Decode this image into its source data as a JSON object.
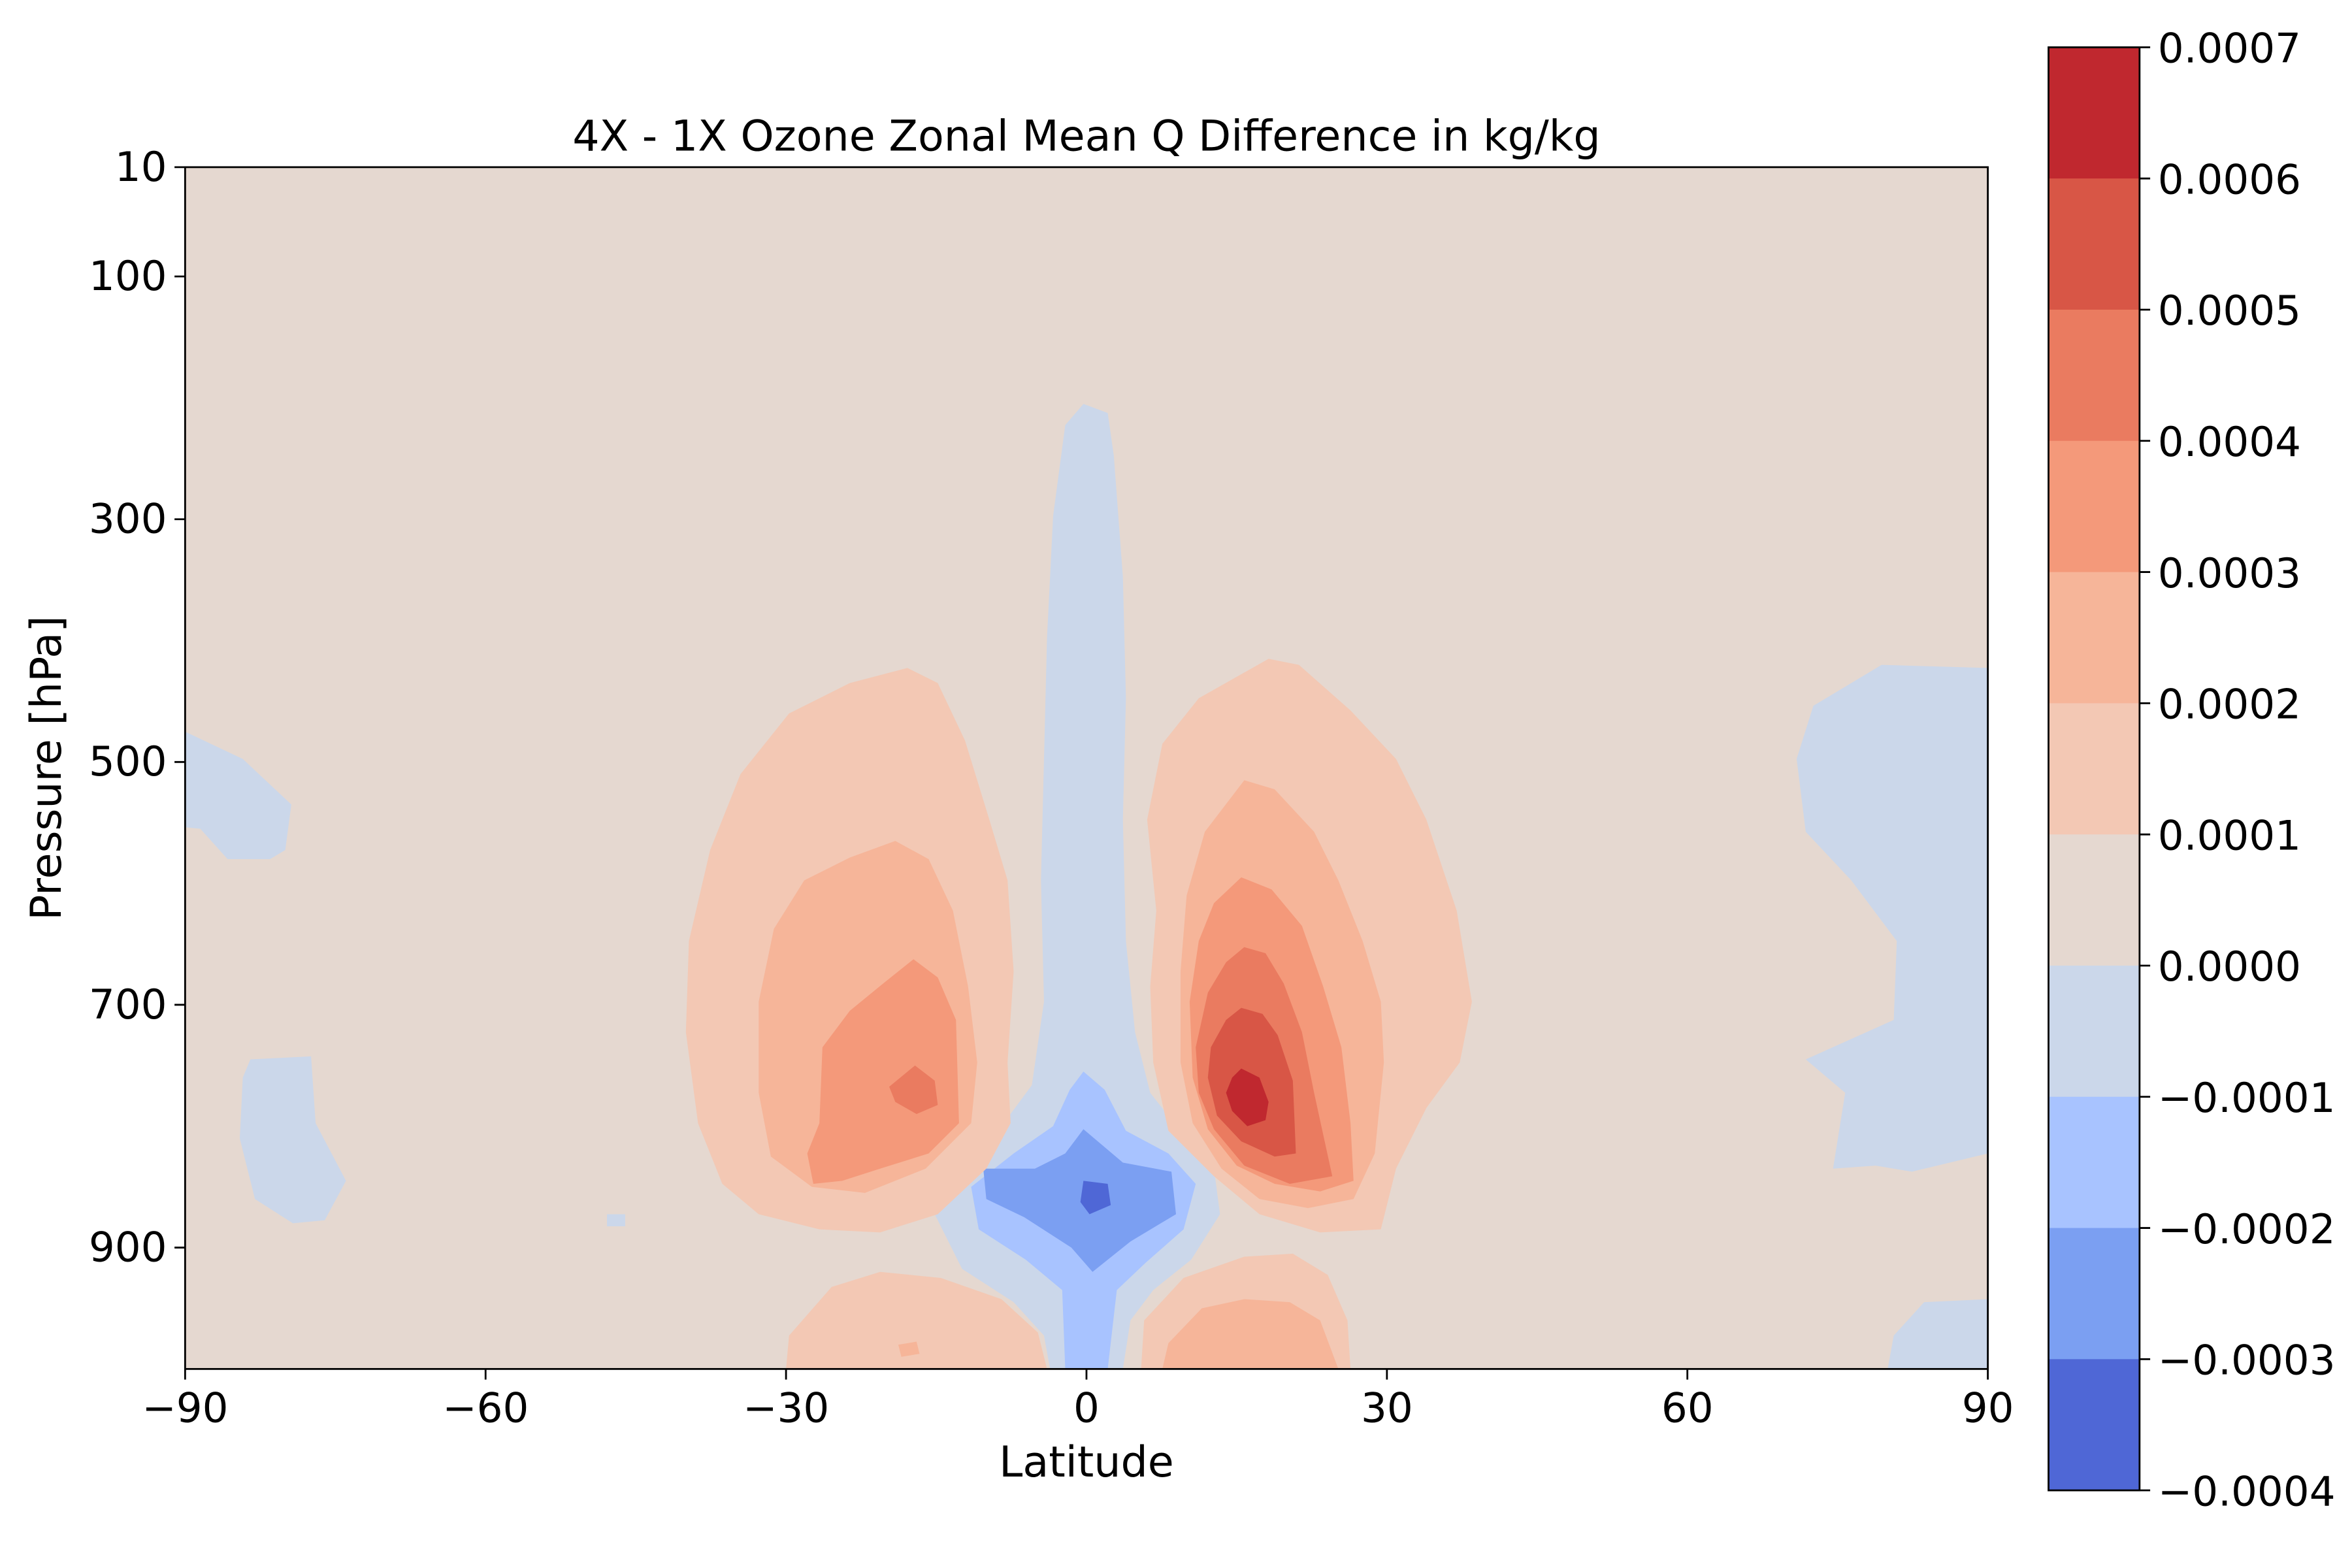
{
  "chart_data": {
    "type": "filled-contour",
    "title": "4X - 1X Ozone Zonal Mean Q Difference in kg/kg",
    "xlabel": "Latitude",
    "ylabel": "Pressure [hPa]",
    "xlim": [
      -90,
      90
    ],
    "ylim": [
      1000,
      10
    ],
    "y_axis_inverted": true,
    "x_ticks": [
      "−90",
      "−60",
      "−30",
      "0",
      "30",
      "60",
      "90"
    ],
    "x_tick_values": [
      -90,
      -60,
      -30,
      0,
      30,
      60,
      90
    ],
    "y_ticks": [
      "10",
      "100",
      "300",
      "500",
      "700",
      "900"
    ],
    "y_tick_values": [
      10,
      100,
      300,
      500,
      700,
      900
    ],
    "colorbar": {
      "levels": [
        "0.0007",
        "0.0006",
        "0.0005",
        "0.0004",
        "0.0003",
        "0.0002",
        "0.0001",
        "0.0000",
        "−0.0001",
        "−0.0002",
        "−0.0003",
        "−0.0004"
      ],
      "level_values": [
        0.0007,
        0.0006,
        0.0005,
        0.0004,
        0.0003,
        0.0002,
        0.0001,
        0.0,
        -0.0001,
        -0.0002,
        -0.0003,
        -0.0004
      ],
      "colors_top_to_bottom": [
        "#c0282f",
        "#d85646",
        "#ea7b60",
        "#f4997a",
        "#f6b599",
        "#f3c8b4",
        "#e5d8d0",
        "#cbd7ea",
        "#a8c3ff",
        "#7b9ff2",
        "#4f67d6"
      ]
    },
    "features": [
      {
        "name": "southern-moist-max",
        "center_lat": -18,
        "center_p": 770,
        "peak": 0.0004
      },
      {
        "name": "northern-moist-max",
        "center_lat": 16,
        "center_p": 775,
        "peak": 0.0007
      },
      {
        "name": "equatorial-dry-min",
        "center_lat": 1,
        "center_p": 855,
        "peak": -0.0004
      },
      {
        "name": "equatorial-negative-tongue",
        "lat_range": [
          -3,
          4
        ],
        "p_range": [
          200,
          1000
        ],
        "peak": -0.0001
      },
      {
        "name": "south-surface-max",
        "center_lat": -20,
        "center_p": 980,
        "peak": 0.0002
      },
      {
        "name": "north-surface-max",
        "center_lat": 18,
        "center_p": 970,
        "peak": 0.0003
      }
    ]
  }
}
